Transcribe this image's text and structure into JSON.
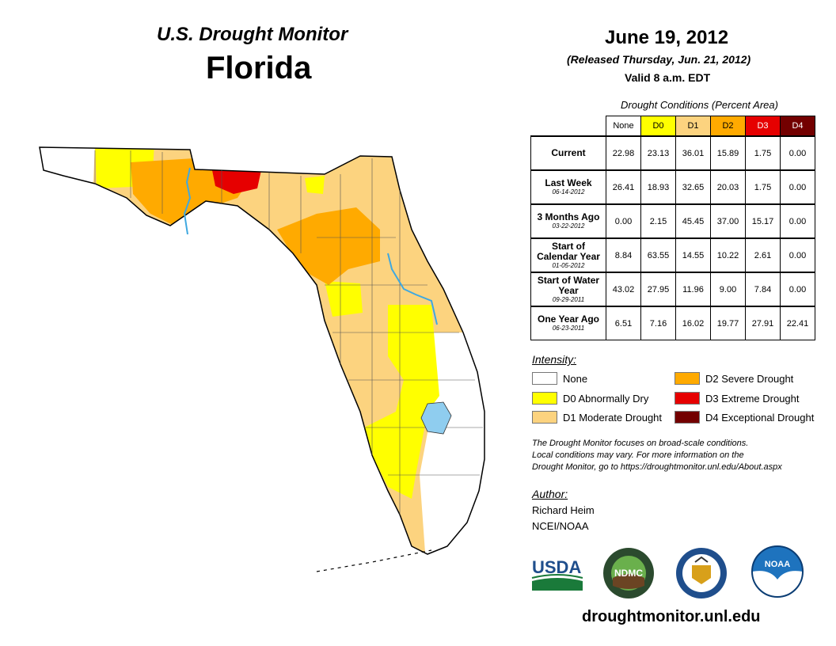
{
  "header": {
    "subtitle": "U.S. Drought Monitor",
    "state": "Florida",
    "date": "June 19, 2012",
    "released": "(Released Thursday, Jun. 21, 2012)",
    "valid": "Valid 8 a.m. EDT"
  },
  "table": {
    "caption": "Drought Conditions (Percent Area)",
    "columns": [
      "None",
      "D0",
      "D1",
      "D2",
      "D3",
      "D4"
    ],
    "rows": [
      {
        "label": "Current",
        "date": "",
        "values": [
          "22.98",
          "23.13",
          "36.01",
          "15.89",
          "1.75",
          "0.00"
        ]
      },
      {
        "label": "Last Week",
        "date": "06-14-2012",
        "values": [
          "26.41",
          "18.93",
          "32.65",
          "20.03",
          "1.75",
          "0.00"
        ]
      },
      {
        "label": "3 Months Ago",
        "date": "03-22-2012",
        "values": [
          "0.00",
          "2.15",
          "45.45",
          "37.00",
          "15.17",
          "0.00"
        ]
      },
      {
        "label": "Start of Calendar Year",
        "date": "01-05-2012",
        "values": [
          "8.84",
          "63.55",
          "14.55",
          "10.22",
          "2.61",
          "0.00"
        ]
      },
      {
        "label": "Start of Water Year",
        "date": "09-29-2011",
        "values": [
          "43.02",
          "27.95",
          "11.96",
          "9.00",
          "7.84",
          "0.00"
        ]
      },
      {
        "label": "One Year Ago",
        "date": "06-23-2011",
        "values": [
          "6.51",
          "7.16",
          "16.02",
          "19.77",
          "27.91",
          "22.41"
        ]
      }
    ]
  },
  "legend": {
    "title": "Intensity:",
    "items": [
      {
        "label": "None",
        "color": "#ffffff"
      },
      {
        "label": "D0 Abnormally Dry",
        "color": "#ffff00"
      },
      {
        "label": "D1 Moderate Drought",
        "color": "#fcd37f"
      },
      {
        "label": "D2 Severe Drought",
        "color": "#ffaa00"
      },
      {
        "label": "D3 Extreme Drought",
        "color": "#e60000"
      },
      {
        "label": "D4 Exceptional Drought",
        "color": "#730000"
      }
    ]
  },
  "note": {
    "line1": "The Drought Monitor focuses on broad-scale conditions.",
    "line2": "Local conditions may vary. For more information on the",
    "line3": "Drought Monitor, go to https://droughtmonitor.unl.edu/About.aspx"
  },
  "author": {
    "title": "Author:",
    "name": "Richard Heim",
    "org": "NCEI/NOAA"
  },
  "logos": {
    "usda": "USDA",
    "ndmc": "NDMC",
    "noaa": "NOAA"
  },
  "footer": {
    "site": "droughtmonitor.unl.edu"
  },
  "colors": {
    "none": "#ffffff",
    "d0": "#ffff00",
    "d1": "#fcd37f",
    "d2": "#ffaa00",
    "d3": "#e60000",
    "d4": "#730000",
    "water": "#8fcdef",
    "river": "#3fa8e0"
  }
}
